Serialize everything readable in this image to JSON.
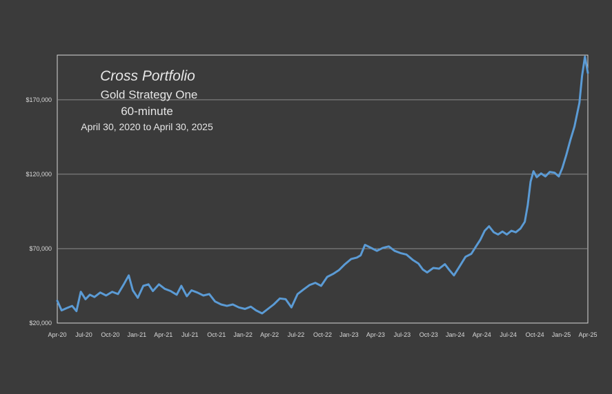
{
  "chart_data": {
    "type": "line",
    "title": "Cross Portfolio",
    "subtitle_lines": [
      "Gold Strategy One",
      "60-minute",
      "April 30,  2020 to April 30, 2025"
    ],
    "xlabel": "",
    "ylabel": "",
    "ylim": [
      20000,
      200000
    ],
    "y_ticks": [
      20000,
      70000,
      120000,
      170000
    ],
    "y_tick_labels": [
      "$20,000",
      "$70,000",
      "$120,000",
      "$170,000"
    ],
    "x_tick_labels": [
      "Apr-20",
      "Jul-20",
      "Oct-20",
      "Jan-21",
      "Apr-21",
      "Jul-21",
      "Oct-21",
      "Jan-22",
      "Apr-22",
      "Jul-22",
      "Oct-22",
      "Jan-23",
      "Apr-23",
      "Jul-23",
      "Oct-23",
      "Jan-24",
      "Apr-24",
      "Jul-24",
      "Oct-24",
      "Jan-25",
      "Apr-25"
    ],
    "grid": "horizontal",
    "legend": "none",
    "colors": {
      "background": "#3b3b3b",
      "line": "#5b9bd5",
      "grid": "#8c8c8c",
      "frame": "#d9d9d9",
      "text": "#e6e6e6"
    },
    "series": [
      {
        "x": [
          "2020-04-30",
          "2020-05-15",
          "2020-06-01",
          "2020-06-20",
          "2020-07-05",
          "2020-07-20",
          "2020-08-05",
          "2020-08-20",
          "2020-09-05",
          "2020-09-25",
          "2020-10-15",
          "2020-11-05",
          "2020-11-25",
          "2020-12-15",
          "2021-01-01",
          "2021-01-15",
          "2021-02-01",
          "2021-02-20",
          "2021-03-10",
          "2021-03-25",
          "2021-04-15",
          "2021-05-05",
          "2021-05-25",
          "2021-06-15",
          "2021-07-01",
          "2021-07-20",
          "2021-08-05",
          "2021-08-25",
          "2021-09-15",
          "2021-10-05",
          "2021-10-25",
          "2021-11-15",
          "2021-12-05",
          "2021-12-25",
          "2022-01-15",
          "2022-02-05",
          "2022-02-25",
          "2022-03-15",
          "2022-04-05",
          "2022-04-25",
          "2022-05-15",
          "2022-06-05",
          "2022-06-25",
          "2022-07-15",
          "2022-08-05",
          "2022-08-25",
          "2022-09-15",
          "2022-10-05",
          "2022-10-25",
          "2022-11-15",
          "2022-12-05",
          "2022-12-25",
          "2023-01-15",
          "2023-02-05",
          "2023-02-25",
          "2023-03-10",
          "2023-03-25",
          "2023-04-15",
          "2023-05-05",
          "2023-05-25",
          "2023-06-15",
          "2023-07-05",
          "2023-07-25",
          "2023-08-15",
          "2023-09-05",
          "2023-09-25",
          "2023-10-10",
          "2023-10-25",
          "2023-11-15",
          "2023-12-05",
          "2023-12-25",
          "2024-01-10",
          "2024-01-25",
          "2024-02-15",
          "2024-03-05",
          "2024-03-25",
          "2024-04-10",
          "2024-04-25",
          "2024-05-10",
          "2024-05-25",
          "2024-06-10",
          "2024-06-25",
          "2024-07-10",
          "2024-07-25",
          "2024-08-10",
          "2024-08-25",
          "2024-09-10",
          "2024-09-25",
          "2024-10-05",
          "2024-10-15",
          "2024-10-25",
          "2024-11-05",
          "2024-11-20",
          "2024-12-05",
          "2024-12-20",
          "2025-01-05",
          "2025-01-20",
          "2025-02-01",
          "2025-02-15",
          "2025-03-01",
          "2025-03-15",
          "2025-04-01",
          "2025-04-10",
          "2025-04-20",
          "2025-04-30"
        ],
        "values": [
          35000,
          28500,
          30000,
          31500,
          28000,
          41000,
          36000,
          39000,
          37500,
          40500,
          38500,
          41000,
          39500,
          46000,
          52000,
          42000,
          37000,
          45000,
          46000,
          41500,
          46000,
          43000,
          41500,
          39000,
          45000,
          38000,
          42000,
          40500,
          38500,
          39500,
          34500,
          32500,
          31500,
          32500,
          30500,
          29500,
          31000,
          28500,
          26500,
          29500,
          32500,
          36500,
          36000,
          30500,
          39500,
          42500,
          45500,
          47000,
          45000,
          51000,
          53000,
          55500,
          59500,
          63000,
          64000,
          65500,
          72500,
          70500,
          68500,
          70500,
          71500,
          68500,
          67000,
          66000,
          62500,
          60000,
          56000,
          54000,
          57000,
          56500,
          59500,
          55500,
          52000,
          58500,
          64500,
          66500,
          71500,
          76000,
          82000,
          85000,
          81000,
          79500,
          81500,
          79500,
          82000,
          81000,
          83500,
          88000,
          99000,
          115000,
          122000,
          118000,
          120500,
          118500,
          121500,
          121000,
          118500,
          124000,
          133000,
          143000,
          152000,
          168000,
          186000,
          199000,
          188000
        ]
      }
    ]
  }
}
